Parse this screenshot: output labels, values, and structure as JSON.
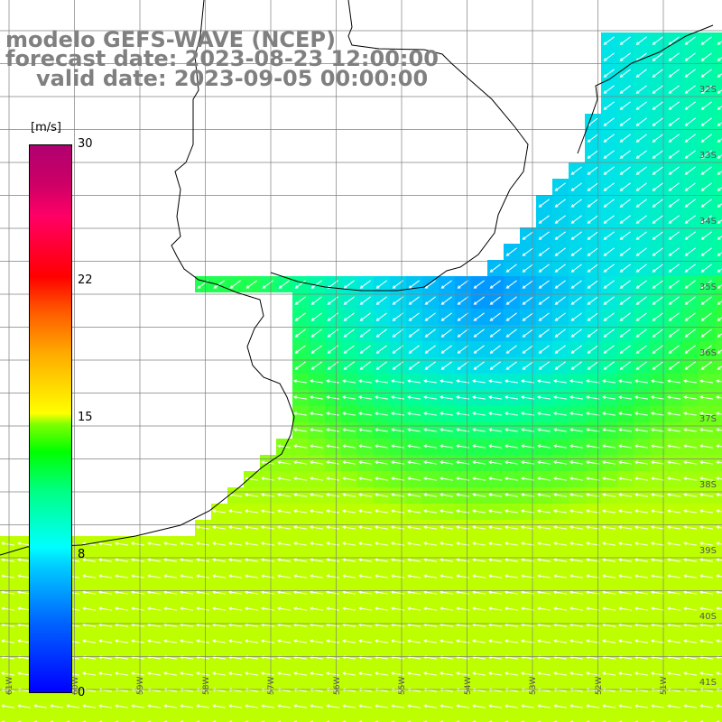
{
  "title": {
    "line1": "modelo GEFS-WAVE (NCEP)",
    "line2": "forecast date: 2023-08-23 12:00:00",
    "line3": "valid date: 2023-09-05 00:00:00"
  },
  "colorbar": {
    "unit": "[m/s]",
    "ticks": [
      "30",
      "22",
      "15",
      "8",
      "0"
    ],
    "colors": [
      "#0000ff",
      "#00ffff",
      "#00ff00",
      "#ffff00",
      "#ff0000",
      "#b00070"
    ]
  },
  "map": {
    "lat_labels": [
      "32S",
      "33S",
      "34S",
      "35S",
      "36S",
      "37S",
      "38S",
      "39S",
      "40S",
      "41S"
    ],
    "lon_labels": [
      "61W",
      "60W",
      "59W",
      "58W",
      "57W",
      "56W",
      "55W",
      "54W",
      "53W",
      "52W",
      "51W"
    ],
    "land_color": "#ffffff",
    "grid_color": "#808080",
    "arrow_color": "#ffffff"
  }
}
